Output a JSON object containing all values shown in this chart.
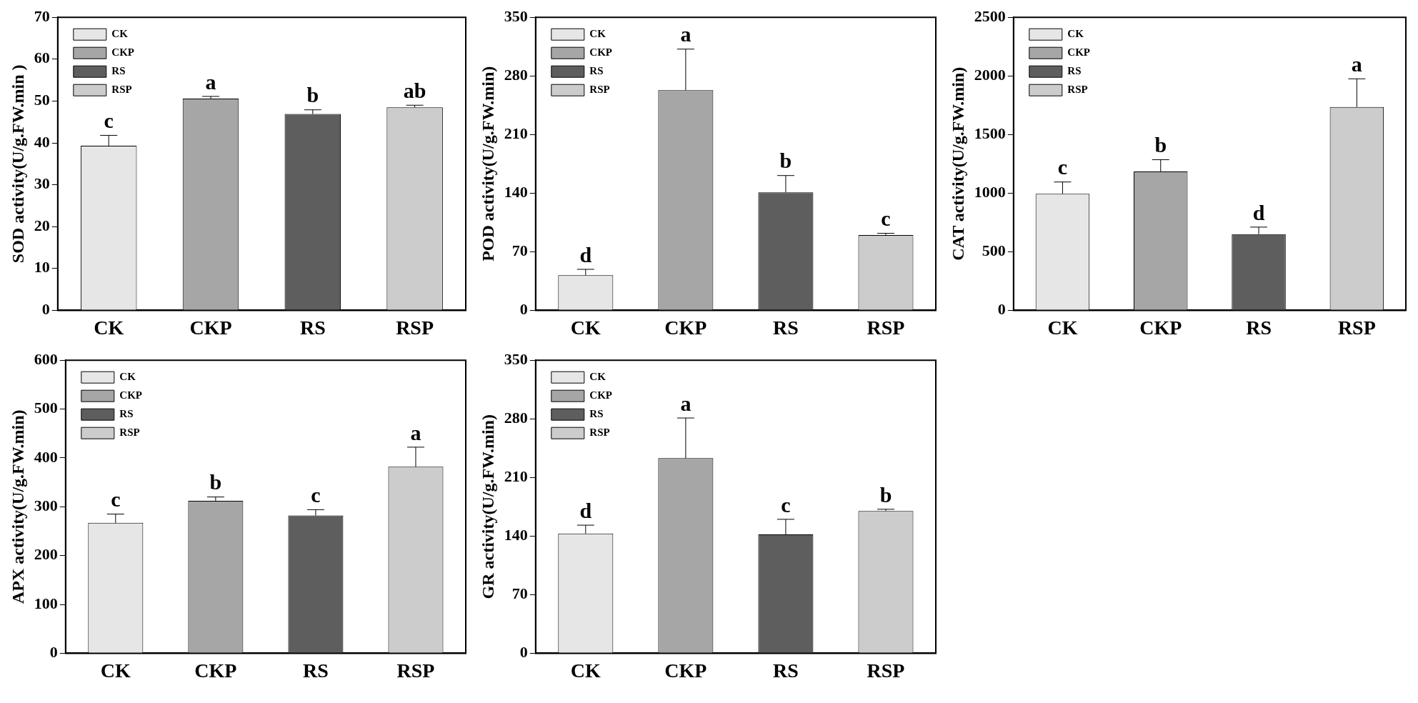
{
  "chart_data": [
    {
      "type": "bar",
      "ylabel": "SOD activity(U/g.FW.min )",
      "categories": [
        "CK",
        "CKP",
        "RS",
        "RSP"
      ],
      "ylim": [
        0,
        70
      ],
      "yticks": [
        0,
        10,
        20,
        30,
        40,
        50,
        60,
        70
      ],
      "legend": "top left",
      "series": [
        {
          "name": "CK",
          "color": "#e6e6e6",
          "values": [
            39.3,
            null,
            null,
            null
          ],
          "errors": [
            [
              39.3,
              41.8
            ],
            null,
            null,
            null
          ]
        },
        {
          "name": "CKP",
          "color": "#a6a6a6",
          "values": [
            null,
            50.6,
            null,
            null
          ],
          "errors": [
            null,
            [
              50.6,
              51.1
            ],
            null,
            null
          ]
        },
        {
          "name": "RS",
          "color": "#5e5e5e",
          "values": [
            null,
            null,
            46.9,
            null
          ],
          "errors": [
            null,
            null,
            [
              46.9,
              47.9
            ],
            null
          ]
        },
        {
          "name": "RSP",
          "color": "#cccccc",
          "values": [
            null,
            null,
            null,
            48.5
          ],
          "errors": [
            null,
            null,
            null,
            [
              48.5,
              49
            ]
          ]
        }
      ],
      "annotations": [
        {
          "text": "c",
          "x": "CK",
          "y": 41.8
        },
        {
          "text": "a",
          "x": "CKP",
          "y": 51.1
        },
        {
          "text": "b",
          "x": "RS",
          "y": 47.9
        },
        {
          "text": "ab",
          "x": "RSP",
          "y": 49
        }
      ]
    },
    {
      "type": "bar",
      "ylabel": "POD activity(U/g.FW.min)",
      "categories": [
        "CK",
        "CKP",
        "RS",
        "RSP"
      ],
      "ylim": [
        0,
        350
      ],
      "yticks": [
        0,
        70,
        140,
        210,
        280,
        350
      ],
      "legend": "top left",
      "series": [
        {
          "name": "CK",
          "color": "#e6e6e6",
          "values": [
            42,
            null,
            null,
            null
          ],
          "errors": [
            [
              42,
              49
            ],
            null,
            null,
            null
          ]
        },
        {
          "name": "CKP",
          "color": "#a6a6a6",
          "values": [
            null,
            263,
            null,
            null
          ],
          "errors": [
            null,
            [
              263,
              312
            ],
            null,
            null
          ]
        },
        {
          "name": "RS",
          "color": "#5e5e5e",
          "values": [
            null,
            null,
            141,
            null
          ],
          "errors": [
            null,
            null,
            [
              141,
              161
            ],
            null
          ]
        },
        {
          "name": "RSP",
          "color": "#cccccc",
          "values": [
            null,
            null,
            null,
            90
          ],
          "errors": [
            null,
            null,
            null,
            [
              90,
              92
            ]
          ]
        }
      ],
      "annotations": [
        {
          "text": "d",
          "x": "CK",
          "y": 49
        },
        {
          "text": "a",
          "x": "CKP",
          "y": 312
        },
        {
          "text": "b",
          "x": "RS",
          "y": 161
        },
        {
          "text": "c",
          "x": "RSP",
          "y": 92
        }
      ]
    },
    {
      "type": "bar",
      "ylabel": "CAT activity(U/g.FW.min)",
      "categories": [
        "CK",
        "CKP",
        "RS",
        "RSP"
      ],
      "ylim": [
        0,
        2500
      ],
      "yticks": [
        0,
        500,
        1000,
        1500,
        2000,
        2500
      ],
      "legend": "top left",
      "series": [
        {
          "name": "CK",
          "color": "#e6e6e6",
          "values": [
            995,
            null,
            null,
            null
          ],
          "errors": [
            [
              995,
              1095
            ],
            null,
            null,
            null
          ]
        },
        {
          "name": "CKP",
          "color": "#a6a6a6",
          "values": [
            null,
            1185,
            null,
            null
          ],
          "errors": [
            null,
            [
              1185,
              1285
            ],
            null,
            null
          ]
        },
        {
          "name": "RS",
          "color": "#5e5e5e",
          "values": [
            null,
            null,
            650,
            null
          ],
          "errors": [
            null,
            null,
            [
              650,
              710
            ],
            null
          ]
        },
        {
          "name": "RSP",
          "color": "#cccccc",
          "values": [
            null,
            null,
            null,
            1735
          ],
          "errors": [
            null,
            null,
            null,
            [
              1735,
              1975
            ]
          ]
        }
      ],
      "annotations": [
        {
          "text": "c",
          "x": "CK",
          "y": 1095
        },
        {
          "text": "b",
          "x": "CKP",
          "y": 1285
        },
        {
          "text": "d",
          "x": "RS",
          "y": 710
        },
        {
          "text": "a",
          "x": "RSP",
          "y": 1975
        }
      ]
    },
    {
      "type": "bar",
      "ylabel": "APX activity(U/g.FW.min)",
      "categories": [
        "CK",
        "CKP",
        "RS",
        "RSP"
      ],
      "ylim": [
        0,
        600
      ],
      "yticks": [
        0,
        100,
        200,
        300,
        400,
        500,
        600
      ],
      "legend": "top left",
      "series": [
        {
          "name": "CK",
          "color": "#e6e6e6",
          "values": [
            267,
            null,
            null,
            null
          ],
          "errors": [
            [
              267,
              285
            ],
            null,
            null,
            null
          ]
        },
        {
          "name": "CKP",
          "color": "#a6a6a6",
          "values": [
            null,
            312,
            null,
            null
          ],
          "errors": [
            null,
            [
              312,
              320
            ],
            null,
            null
          ]
        },
        {
          "name": "RS",
          "color": "#5e5e5e",
          "values": [
            null,
            null,
            282,
            null
          ],
          "errors": [
            null,
            null,
            [
              282,
              294
            ],
            null
          ]
        },
        {
          "name": "RSP",
          "color": "#cccccc",
          "values": [
            null,
            null,
            null,
            382
          ],
          "errors": [
            null,
            null,
            null,
            [
              382,
              422
            ]
          ]
        }
      ],
      "annotations": [
        {
          "text": "c",
          "x": "CK",
          "y": 285
        },
        {
          "text": "b",
          "x": "CKP",
          "y": 320
        },
        {
          "text": "c",
          "x": "RS",
          "y": 294
        },
        {
          "text": "a",
          "x": "RSP",
          "y": 422
        }
      ]
    },
    {
      "type": "bar",
      "ylabel": "GR activity(U/g.FW.min)",
      "categories": [
        "CK",
        "CKP",
        "RS",
        "RSP"
      ],
      "ylim": [
        0,
        350
      ],
      "yticks": [
        0,
        70,
        140,
        210,
        280,
        350
      ],
      "legend": "top left",
      "series": [
        {
          "name": "CK",
          "color": "#e6e6e6",
          "values": [
            143,
            null,
            null,
            null
          ],
          "errors": [
            [
              143,
              153
            ],
            null,
            null,
            null
          ]
        },
        {
          "name": "CKP",
          "color": "#a6a6a6",
          "values": [
            null,
            233,
            null,
            null
          ],
          "errors": [
            null,
            [
              233,
              281
            ],
            null,
            null
          ]
        },
        {
          "name": "RS",
          "color": "#5e5e5e",
          "values": [
            null,
            null,
            142,
            null
          ],
          "errors": [
            null,
            null,
            [
              142,
              160
            ],
            null
          ]
        },
        {
          "name": "RSP",
          "color": "#cccccc",
          "values": [
            null,
            null,
            null,
            170
          ],
          "errors": [
            null,
            null,
            null,
            [
              170,
              172
            ]
          ]
        }
      ],
      "annotations": [
        {
          "text": "d",
          "x": "CK",
          "y": 153
        },
        {
          "text": "a",
          "x": "CKP",
          "y": 281
        },
        {
          "text": "c",
          "x": "RS",
          "y": 160
        },
        {
          "text": "b",
          "x": "RSP",
          "y": 172
        }
      ]
    }
  ]
}
